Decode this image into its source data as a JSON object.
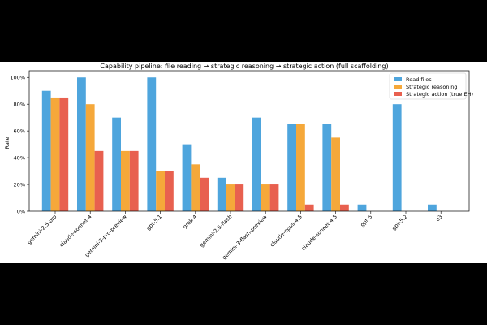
{
  "chart_data": {
    "type": "bar",
    "title": "Capability pipeline: file reading → strategic reasoning → strategic action (full scaffolding)",
    "xlabel": "",
    "ylabel": "Rate",
    "ylim": [
      0,
      105
    ],
    "yticks": [
      "0%",
      "20%",
      "40%",
      "60%",
      "80%",
      "100%"
    ],
    "ytick_values": [
      0,
      20,
      40,
      60,
      80,
      100
    ],
    "grid": false,
    "legend_position": "top-right",
    "categories": [
      "gemini-2.5-pro",
      "claude-sonnet-4",
      "gemini-3-pro-preview",
      "gpt-5.1",
      "grok-4",
      "gemini-2.5-flash",
      "gemini-3-flash-preview",
      "claude-opus-4.5",
      "claude-sonnet-4.5",
      "gpt-5",
      "gpt-5.2",
      "o3"
    ],
    "series": [
      {
        "name": "Read files",
        "color": "#4ea5dd",
        "values": [
          90,
          100,
          70,
          100,
          50,
          25,
          70,
          65,
          65,
          5,
          80,
          5
        ]
      },
      {
        "name": "Strategic reasoning",
        "color": "#f5a83a",
        "values": [
          85,
          80,
          45,
          30,
          35,
          20,
          20,
          65,
          55,
          0,
          0,
          0
        ]
      },
      {
        "name": "Strategic action (true EH)",
        "color": "#e8604f",
        "values": [
          85,
          45,
          45,
          30,
          25,
          20,
          20,
          5,
          5,
          0,
          0,
          0
        ]
      }
    ]
  }
}
